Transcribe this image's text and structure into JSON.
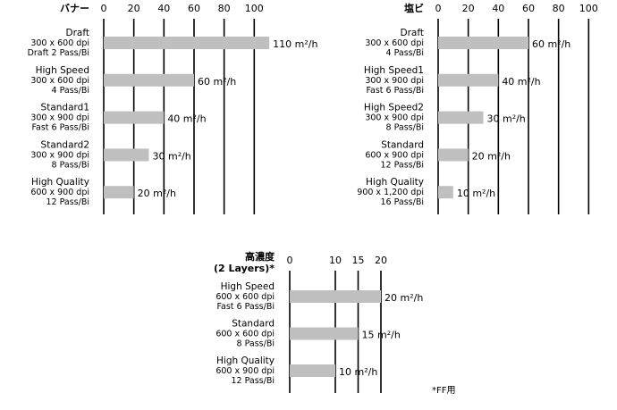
{
  "chart_data": [
    {
      "type": "bar",
      "orientation": "horizontal",
      "title": "バナー",
      "ticks": [
        "0",
        "20",
        "40",
        "60",
        "80",
        "100"
      ],
      "xlim": [
        0,
        100
      ],
      "unit": "m²/h",
      "grid": true,
      "categories": [
        {
          "name": "Draft",
          "spec": [
            "300 x 600 dpi",
            "Draft 2 Pass/Bi"
          ],
          "value": 110,
          "label": "110 m²/h"
        },
        {
          "name": "High Speed",
          "spec": [
            "300 x 600 dpi",
            "4 Pass/Bi"
          ],
          "value": 60,
          "label": "60 m²/h"
        },
        {
          "name": "Standard1",
          "spec": [
            "300 x 900 dpi",
            "Fast 6 Pass/Bi"
          ],
          "value": 40,
          "label": "40 m²/h"
        },
        {
          "name": "Standard2",
          "spec": [
            "300 x 900 dpi",
            "8 Pass/Bi"
          ],
          "value": 30,
          "label": "30 m²/h"
        },
        {
          "name": "High Quality",
          "spec": [
            "600 x 900 dpi",
            "12 Pass/Bi"
          ],
          "value": 20,
          "label": "20 m²/h"
        }
      ]
    },
    {
      "type": "bar",
      "orientation": "horizontal",
      "title": "塩ビ",
      "ticks": [
        "0",
        "20",
        "40",
        "60",
        "80",
        "100"
      ],
      "xlim": [
        0,
        100
      ],
      "unit": "m²/h",
      "grid": true,
      "categories": [
        {
          "name": "Draft",
          "spec": [
            "300 x 600 dpi",
            "4 Pass/Bi"
          ],
          "value": 60,
          "label": "60 m²/h"
        },
        {
          "name": "High Speed1",
          "spec": [
            "300 x 900 dpi",
            "Fast 6 Pass/Bi"
          ],
          "value": 40,
          "label": "40 m²/h"
        },
        {
          "name": "High Speed2",
          "spec": [
            "300 x 900 dpi",
            "8 Pass/Bi"
          ],
          "value": 30,
          "label": "30 m²/h"
        },
        {
          "name": "Standard",
          "spec": [
            "600 x 900 dpi",
            "12 Pass/Bi"
          ],
          "value": 20,
          "label": "20 m²/h"
        },
        {
          "name": "High Quality",
          "spec": [
            "900 x 1,200 dpi",
            "16 Pass/Bi"
          ],
          "value": 10,
          "label": "10 m²/h"
        }
      ]
    },
    {
      "type": "bar",
      "orientation": "horizontal",
      "title": "高濃度",
      "subtitle": "(2 Layers)*",
      "ticks": [
        "0",
        "10",
        "15",
        "20"
      ],
      "tick_values": [
        0,
        10,
        15,
        20
      ],
      "xlim": [
        0,
        20
      ],
      "unit": "m²/h",
      "grid": true,
      "categories": [
        {
          "name": "High Speed",
          "spec": [
            "600 x 600 dpi",
            "Fast 6 Pass/Bi"
          ],
          "value": 20,
          "label": "20 m²/h"
        },
        {
          "name": "Standard",
          "spec": [
            "600 x 600 dpi",
            "8 Pass/Bi"
          ],
          "value": 15,
          "label": "15 m²/h"
        },
        {
          "name": "High Quality",
          "spec": [
            "600 x 900 dpi",
            "12 Pass/Bi"
          ],
          "value": 10,
          "label": "10 m²/h"
        }
      ]
    }
  ],
  "footnote": "*FF用",
  "colors": {
    "bar": "#bfbfbf",
    "grid": "#000000",
    "text": "#111111"
  }
}
